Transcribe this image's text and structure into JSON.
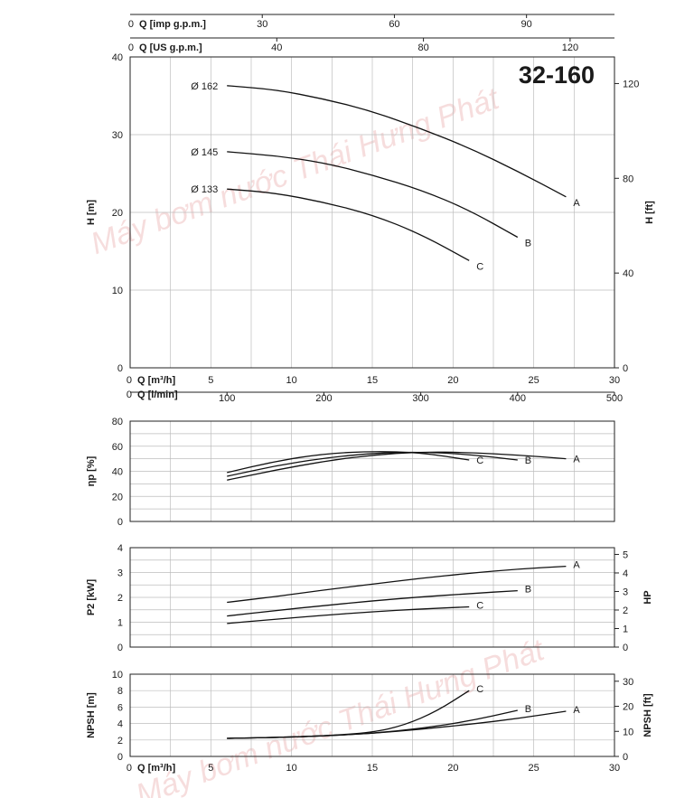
{
  "chart_data": {
    "type": "line",
    "model": "32-160",
    "watermark": "Máy bơm nước Thái Hưng Phát",
    "top_axes": [
      {
        "label": "Q [imp g.p.m.]",
        "zero": "0",
        "ticks": [
          {
            "v": 30,
            "t": "30"
          },
          {
            "v": 60,
            "t": "60"
          },
          {
            "v": 90,
            "t": "90"
          }
        ],
        "m3h_per_unit": 0.2728
      },
      {
        "label": "Q [US g.p.m.]",
        "zero": "0",
        "ticks": [
          {
            "v": 40,
            "t": "40"
          },
          {
            "v": 80,
            "t": "80"
          },
          {
            "v": 120,
            "t": "120"
          }
        ],
        "m3h_per_unit": 0.2271
      }
    ],
    "head": {
      "ylabel": "H [m]",
      "ylabel2": "H [ft]",
      "ylim": [
        0,
        40
      ],
      "yticks": [
        "0",
        "10",
        "20",
        "30",
        "40"
      ],
      "y2ticks": [
        {
          "v": 0,
          "t": "0"
        },
        {
          "v": 40,
          "t": "40"
        },
        {
          "v": 80,
          "t": "80"
        },
        {
          "v": 120,
          "t": "120"
        }
      ],
      "xlabel": "Q [m³/h]",
      "xlim": [
        0,
        30
      ],
      "xticks": [
        {
          "v": 5,
          "t": "5"
        },
        {
          "v": 10,
          "t": "10"
        },
        {
          "v": 15,
          "t": "15"
        },
        {
          "v": 20,
          "t": "20"
        },
        {
          "v": 25,
          "t": "25"
        },
        {
          "v": 30,
          "t": "30"
        }
      ],
      "xlabel2": "Q [l/min]",
      "x2ticks": [
        {
          "v": 100,
          "t": "100"
        },
        {
          "v": 200,
          "t": "200"
        },
        {
          "v": 300,
          "t": "300"
        },
        {
          "v": 400,
          "t": "400"
        },
        {
          "v": 500,
          "t": "500"
        }
      ],
      "series": [
        {
          "name": "A",
          "diameter": "Ø 162",
          "x": [
            6,
            9,
            12,
            15,
            18,
            21,
            24,
            27
          ],
          "y": [
            36.3,
            35.8,
            34.6,
            33,
            30.8,
            28.3,
            25.3,
            22
          ]
        },
        {
          "name": "B",
          "diameter": "Ø 145",
          "x": [
            6,
            9,
            12,
            15,
            18,
            21,
            24
          ],
          "y": [
            27.8,
            27.3,
            26.4,
            24.8,
            22.9,
            20.3,
            16.8
          ]
        },
        {
          "name": "C",
          "diameter": "Ø 133",
          "x": [
            6,
            9,
            12,
            15,
            18,
            21
          ],
          "y": [
            23,
            22.5,
            21.3,
            19.7,
            17.2,
            13.8
          ]
        }
      ]
    },
    "efficiency": {
      "ylabel": "ηp [%]",
      "ylim": [
        0,
        80
      ],
      "yticks": [
        "0",
        "20",
        "40",
        "60",
        "80"
      ],
      "series": [
        {
          "name": "A",
          "x": [
            6,
            9,
            12,
            15,
            18,
            21,
            24,
            27
          ],
          "y": [
            33,
            41,
            48,
            53,
            55.5,
            55,
            53,
            50
          ]
        },
        {
          "name": "B",
          "x": [
            6,
            9,
            12,
            15,
            18,
            21,
            24
          ],
          "y": [
            36,
            44.5,
            50.5,
            54.5,
            55.5,
            53.5,
            49
          ]
        },
        {
          "name": "C",
          "x": [
            6,
            9,
            12,
            15,
            18,
            21
          ],
          "y": [
            39,
            48,
            54,
            56,
            55,
            49
          ]
        }
      ]
    },
    "power": {
      "ylabel": "P2 [kW]",
      "ylabel2": "HP",
      "ylim": [
        0,
        4
      ],
      "yticks": [
        "0",
        "1",
        "2",
        "3",
        "4"
      ],
      "y2ticks": [
        {
          "v": 0,
          "t": "0"
        },
        {
          "v": 1,
          "t": "1"
        },
        {
          "v": 2,
          "t": "2"
        },
        {
          "v": 3,
          "t": "3"
        },
        {
          "v": 4,
          "t": "4"
        },
        {
          "v": 5,
          "t": "5"
        }
      ],
      "series": [
        {
          "name": "A",
          "x": [
            6,
            9,
            12,
            15,
            18,
            21,
            24,
            27
          ],
          "y": [
            1.8,
            2.03,
            2.3,
            2.53,
            2.77,
            2.97,
            3.14,
            3.25
          ]
        },
        {
          "name": "B",
          "x": [
            6,
            9,
            12,
            15,
            18,
            21,
            24
          ],
          "y": [
            1.25,
            1.47,
            1.67,
            1.86,
            2.02,
            2.15,
            2.27
          ]
        },
        {
          "name": "C",
          "x": [
            6,
            9,
            12,
            15,
            18,
            21
          ],
          "y": [
            0.95,
            1.12,
            1.28,
            1.42,
            1.53,
            1.62
          ]
        }
      ]
    },
    "npsh": {
      "ylabel": "NPSH [m]",
      "ylabel2": "NPSH [ft]",
      "ylim": [
        0,
        10
      ],
      "yticks": [
        "0",
        "2",
        "4",
        "6",
        "8",
        "10"
      ],
      "y2ticks": [
        {
          "v": 0,
          "t": "0"
        },
        {
          "v": 10,
          "t": "10"
        },
        {
          "v": 20,
          "t": "20"
        },
        {
          "v": 30,
          "t": "30"
        }
      ],
      "xlabel": "Q [m³/h]",
      "xticks": [
        {
          "v": 5,
          "t": "5"
        },
        {
          "v": 10,
          "t": "10"
        },
        {
          "v": 15,
          "t": "15"
        },
        {
          "v": 20,
          "t": "20"
        },
        {
          "v": 25,
          "t": "25"
        },
        {
          "v": 30,
          "t": "30"
        }
      ],
      "series": [
        {
          "name": "A",
          "x": [
            6,
            9,
            12,
            15,
            18,
            21,
            24,
            27
          ],
          "y": [
            2.2,
            2.3,
            2.5,
            2.8,
            3.3,
            3.9,
            4.6,
            5.5
          ]
        },
        {
          "name": "B",
          "x": [
            6,
            9,
            12,
            15,
            18,
            21,
            24
          ],
          "y": [
            2.2,
            2.3,
            2.5,
            2.8,
            3.4,
            4.3,
            5.6
          ]
        },
        {
          "name": "C",
          "x": [
            6,
            9,
            12,
            15,
            17,
            19,
            21
          ],
          "y": [
            2.2,
            2.3,
            2.5,
            2.9,
            3.8,
            5.5,
            8
          ]
        }
      ]
    }
  }
}
